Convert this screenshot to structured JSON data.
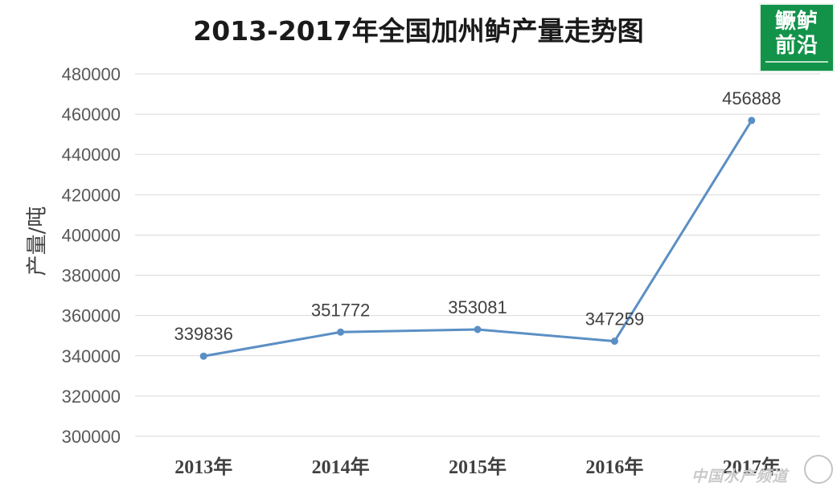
{
  "logo": {
    "text": "鳜鲈\n前沿"
  },
  "watermark": {
    "text": "中国水产频道"
  },
  "colors": {
    "line": "#5b8fc4",
    "grid": "#d9d9d9",
    "logo_bg": "#13924a"
  },
  "chart_data": {
    "type": "line",
    "title": "2013-2017年全国加州鲈产量走势图",
    "xlabel": "",
    "ylabel": "产量/吨",
    "categories": [
      "2013年",
      "2014年",
      "2015年",
      "2016年",
      "2017年"
    ],
    "series": [
      {
        "values": [
          339836,
          351772,
          353081,
          347259,
          456888
        ]
      }
    ],
    "data_labels": [
      "339836",
      "351772",
      "353081",
      "347259",
      "456888"
    ],
    "ylim": [
      300000,
      480000
    ],
    "yticks": [
      300000,
      320000,
      340000,
      360000,
      380000,
      400000,
      420000,
      440000,
      460000,
      480000
    ],
    "grid": true,
    "legend": "none"
  }
}
